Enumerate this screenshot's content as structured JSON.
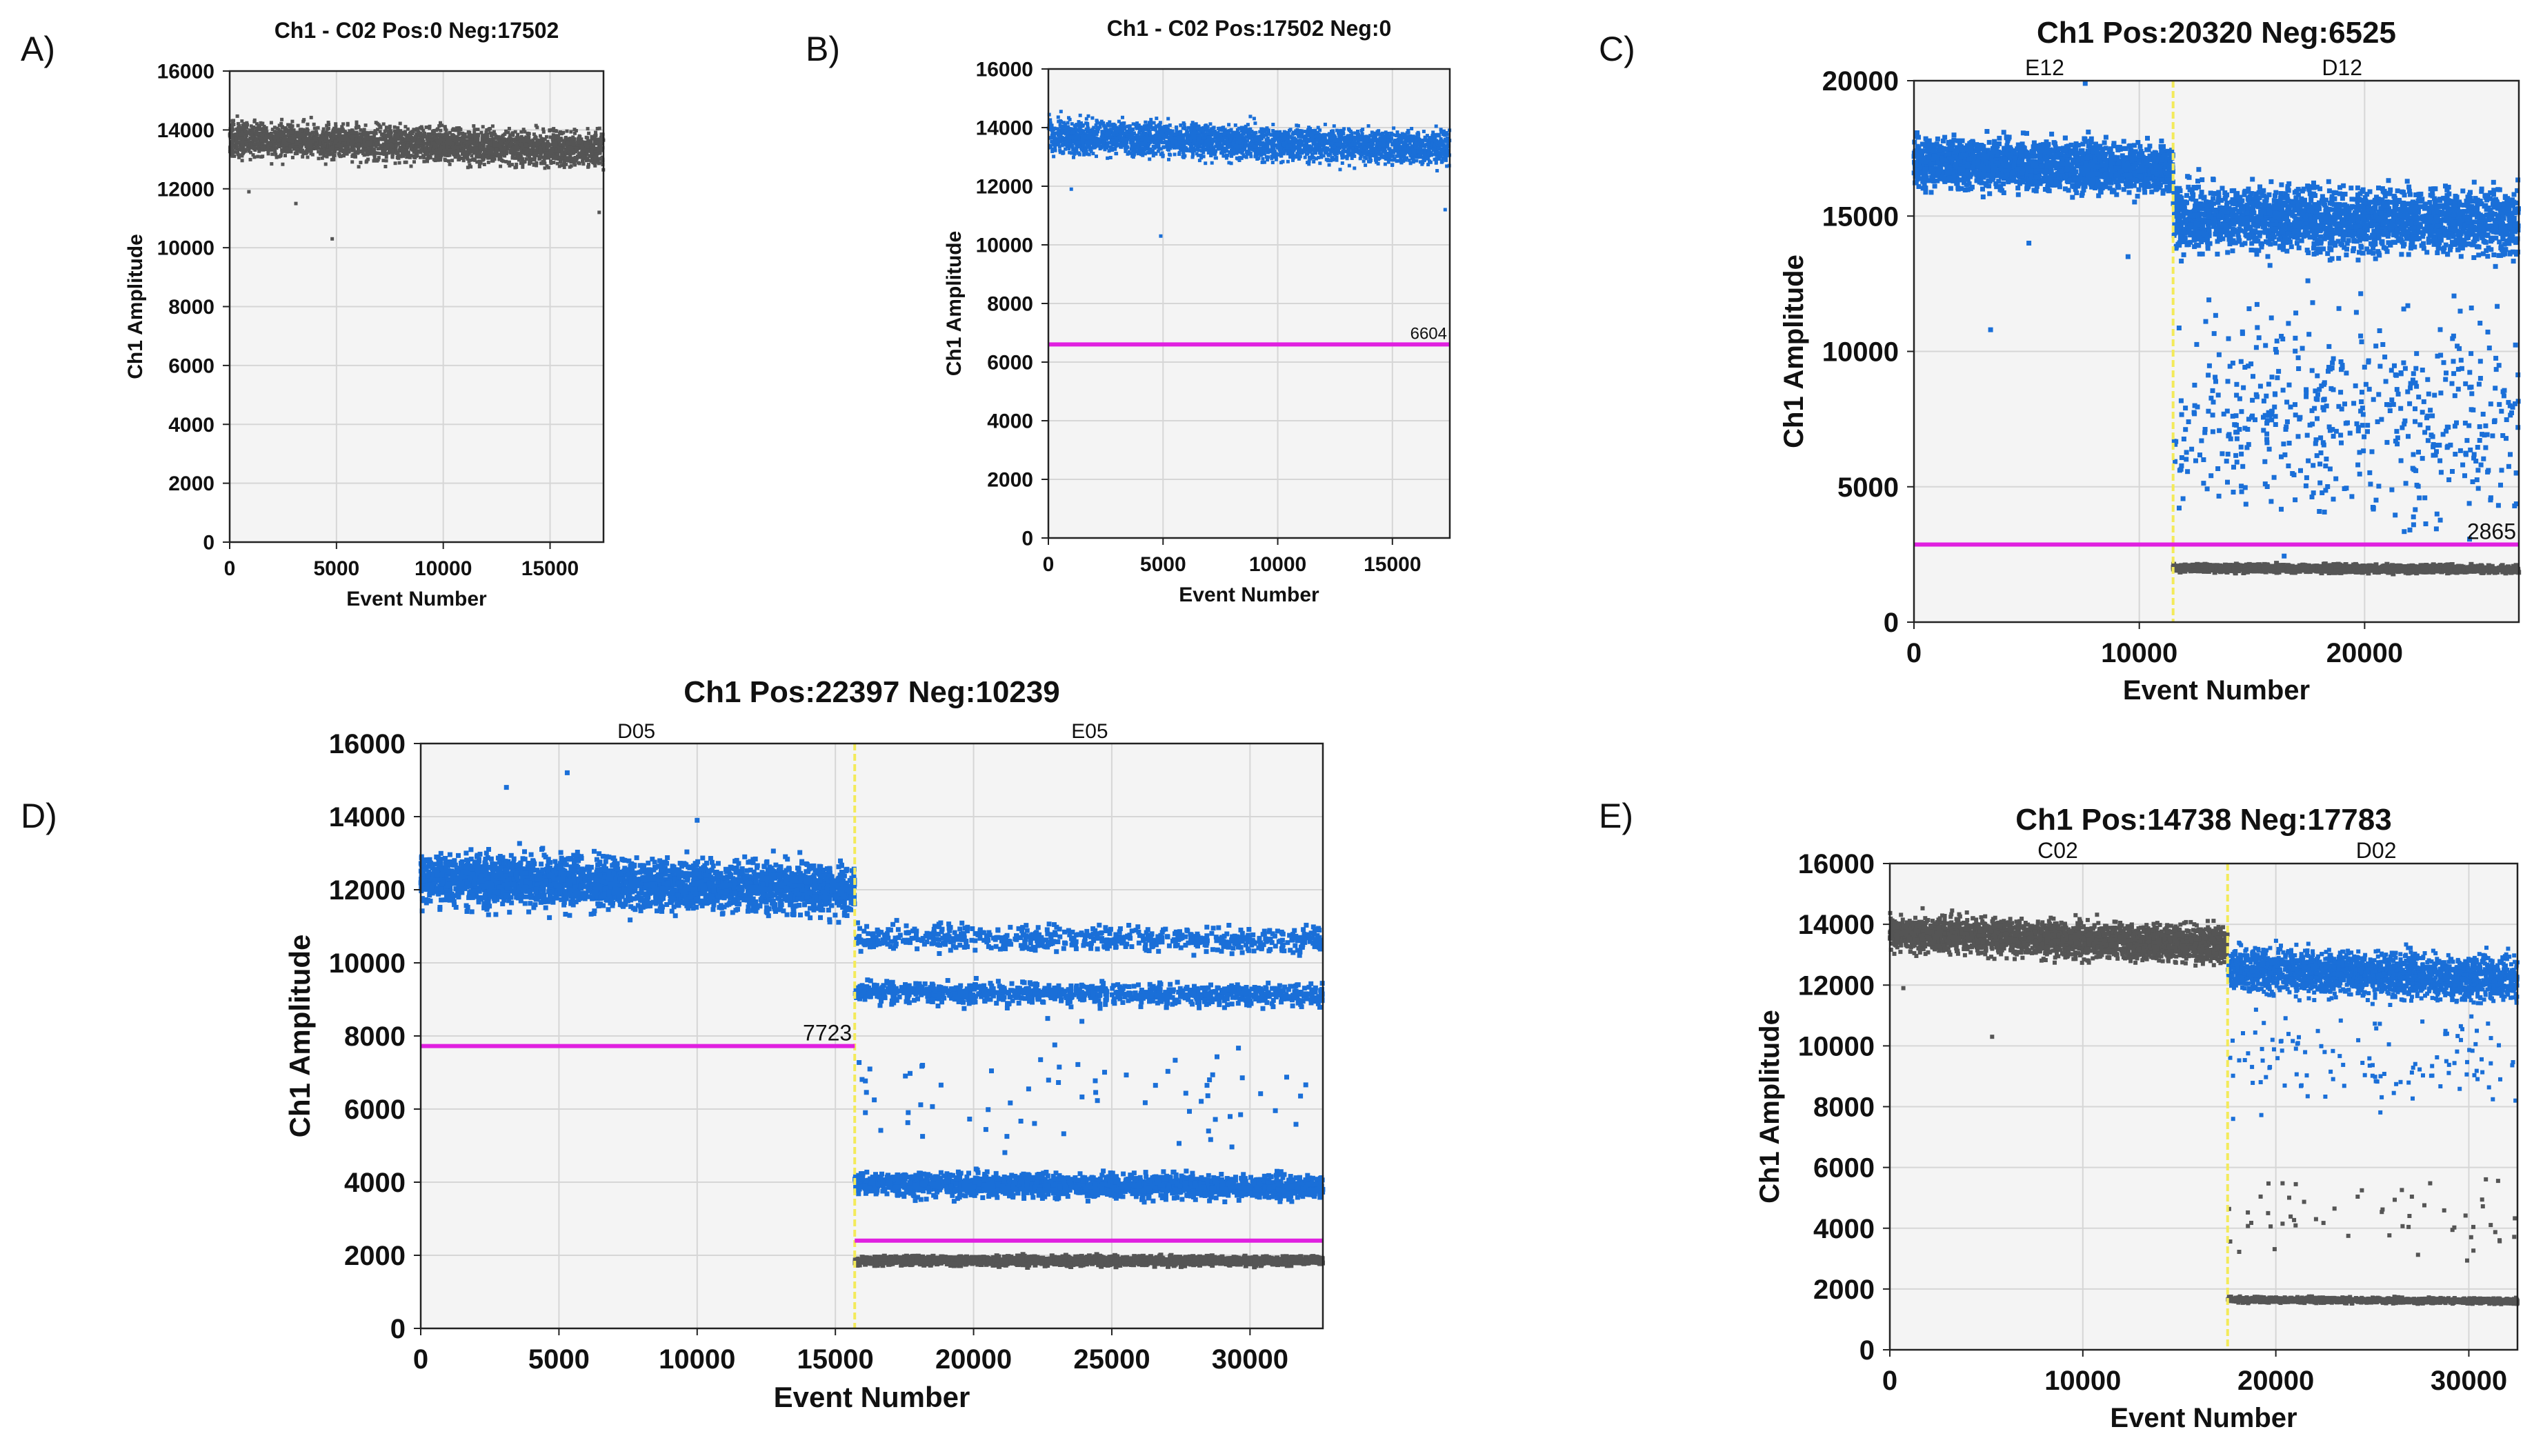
{
  "figure_labels": [
    "A)",
    "B)",
    "C)",
    "D)",
    "E)"
  ],
  "colors": {
    "positive": "#1a6fd8",
    "negative": "#555555",
    "threshold": "#e020e0",
    "separator": "#f3ea5a",
    "plot_bg": "#f4f4f4",
    "grid": "#d6d6d6"
  },
  "chart_data": [
    {
      "id": "A",
      "type": "scatter",
      "title": "Ch1 - C02 Pos:0 Neg:17502",
      "xlabel": "Event Number",
      "ylabel": "Ch1 Amplitude",
      "xlim": [
        0,
        17502
      ],
      "ylim": [
        0,
        16000
      ],
      "xticks": [
        0,
        5000,
        10000,
        15000
      ],
      "yticks": [
        0,
        2000,
        4000,
        6000,
        8000,
        10000,
        12000,
        14000,
        16000
      ],
      "wells": [],
      "thresholds": [],
      "clusters": [
        {
          "name": "negative",
          "color": "negative",
          "x": [
            0,
            17502
          ],
          "y_start": 13700,
          "y_end": 13300,
          "spread": 550,
          "n": 3200
        }
      ],
      "outliers": [
        {
          "x": 4800,
          "y": 10300,
          "color": "negative"
        },
        {
          "x": 900,
          "y": 11900,
          "color": "negative"
        },
        {
          "x": 3100,
          "y": 11500,
          "color": "negative"
        },
        {
          "x": 17300,
          "y": 11200,
          "color": "negative"
        }
      ]
    },
    {
      "id": "B",
      "type": "scatter",
      "title": "Ch1 - C02 Pos:17502 Neg:0",
      "xlabel": "Event Number",
      "ylabel": "Ch1 Amplitude",
      "xlim": [
        0,
        17502
      ],
      "ylim": [
        0,
        16000
      ],
      "xticks": [
        0,
        5000,
        10000,
        15000
      ],
      "yticks": [
        0,
        2000,
        4000,
        6000,
        8000,
        10000,
        12000,
        14000,
        16000
      ],
      "wells": [],
      "thresholds": [
        {
          "value": 6604,
          "label": "6604",
          "x": [
            0,
            17502
          ]
        }
      ],
      "clusters": [
        {
          "name": "positive",
          "color": "positive",
          "x": [
            0,
            17502
          ],
          "y_start": 13700,
          "y_end": 13300,
          "spread": 550,
          "n": 3200
        }
      ],
      "outliers": [
        {
          "x": 4900,
          "y": 10300,
          "color": "positive"
        },
        {
          "x": 1000,
          "y": 11900,
          "color": "positive"
        },
        {
          "x": 17300,
          "y": 11200,
          "color": "positive"
        }
      ]
    },
    {
      "id": "C",
      "type": "scatter",
      "title": "Ch1 Pos:20320 Neg:6525",
      "xlabel": "Event Number",
      "ylabel": "Ch1 Amplitude",
      "xlim": [
        0,
        26845
      ],
      "ylim": [
        0,
        20000
      ],
      "xticks": [
        0,
        10000,
        20000
      ],
      "yticks": [
        0,
        5000,
        10000,
        15000,
        20000
      ],
      "wells": [
        {
          "label": "E12",
          "x": 5800
        },
        {
          "label": "D12",
          "x": 19000
        }
      ],
      "separators": [
        11500
      ],
      "thresholds": [
        {
          "value": 2865,
          "label": "2865",
          "x": [
            0,
            26845
          ]
        }
      ],
      "clusters": [
        {
          "name": "positive-E12",
          "color": "positive",
          "x": [
            0,
            11500
          ],
          "y_start": 17000,
          "y_end": 16700,
          "spread": 850,
          "n": 1900
        },
        {
          "name": "positive-D12",
          "color": "positive",
          "x": [
            11500,
            26845
          ],
          "y_start": 15000,
          "y_end": 14700,
          "spread": 1150,
          "n": 2300
        },
        {
          "name": "rain-D12",
          "color": "positive",
          "x": [
            11500,
            26845
          ],
          "y_start": 7500,
          "y_end": 7500,
          "spread": 3800,
          "n": 520
        },
        {
          "name": "negative-D12",
          "color": "negative",
          "x": [
            11500,
            26845
          ],
          "y_start": 2000,
          "y_end": 1950,
          "spread": 130,
          "n": 1500
        }
      ],
      "outliers": [
        {
          "x": 3400,
          "y": 10800,
          "color": "positive"
        },
        {
          "x": 7600,
          "y": 19900,
          "color": "positive"
        },
        {
          "x": 5100,
          "y": 14000,
          "color": "positive"
        },
        {
          "x": 9500,
          "y": 13500,
          "color": "positive"
        }
      ]
    },
    {
      "id": "D",
      "type": "scatter",
      "title": "Ch1 Pos:22397 Neg:10239",
      "xlabel": "Event Number",
      "ylabel": "Ch1 Amplitude",
      "xlim": [
        0,
        32636
      ],
      "ylim": [
        0,
        16000
      ],
      "xticks": [
        0,
        5000,
        10000,
        15000,
        20000,
        25000,
        30000
      ],
      "yticks": [
        0,
        2000,
        4000,
        6000,
        8000,
        10000,
        12000,
        14000,
        16000
      ],
      "wells": [
        {
          "label": "D05",
          "x": 7800
        },
        {
          "label": "E05",
          "x": 24200
        }
      ],
      "separators": [
        15700
      ],
      "thresholds": [
        {
          "value": 7723,
          "label": "7723",
          "x": [
            0,
            15700
          ]
        },
        {
          "value": 2400,
          "label": "",
          "x": [
            15700,
            32636
          ]
        }
      ],
      "clusters": [
        {
          "name": "positive-D05",
          "color": "positive",
          "x": [
            0,
            15700
          ],
          "y_start": 12300,
          "y_end": 12000,
          "spread": 650,
          "n": 3000
        },
        {
          "name": "positive-E05-high",
          "color": "positive",
          "x": [
            15700,
            32636
          ],
          "y_start": 10700,
          "y_end": 10600,
          "spread": 330,
          "n": 650
        },
        {
          "name": "positive-E05-mid",
          "color": "positive",
          "x": [
            15700,
            32636
          ],
          "y_start": 9200,
          "y_end": 9100,
          "spread": 280,
          "n": 950
        },
        {
          "name": "rain-E05",
          "color": "positive",
          "x": [
            15700,
            32636
          ],
          "y_start": 6500,
          "y_end": 6500,
          "spread": 1600,
          "n": 70
        },
        {
          "name": "positive-E05-low",
          "color": "positive",
          "x": [
            15700,
            32636
          ],
          "y_start": 3950,
          "y_end": 3850,
          "spread": 300,
          "n": 2000
        },
        {
          "name": "negative-E05",
          "color": "negative",
          "x": [
            15700,
            32636
          ],
          "y_start": 1850,
          "y_end": 1850,
          "spread": 120,
          "n": 1700
        }
      ],
      "outliers": [
        {
          "x": 3100,
          "y": 14800,
          "color": "positive"
        },
        {
          "x": 5300,
          "y": 15200,
          "color": "positive"
        },
        {
          "x": 10000,
          "y": 13900,
          "color": "positive"
        },
        {
          "x": 28500,
          "y": 5400,
          "color": "positive"
        }
      ]
    },
    {
      "id": "E",
      "type": "scatter",
      "title": "Ch1 Pos:14738 Neg:17783",
      "xlabel": "Event Number",
      "ylabel": "Ch1 Amplitude",
      "xlim": [
        0,
        32521
      ],
      "ylim": [
        0,
        16000
      ],
      "xticks": [
        0,
        10000,
        20000,
        30000
      ],
      "yticks": [
        0,
        2000,
        4000,
        6000,
        8000,
        10000,
        12000,
        14000,
        16000
      ],
      "wells": [
        {
          "label": "C02",
          "x": 8700
        },
        {
          "label": "D02",
          "x": 25200
        }
      ],
      "separators": [
        17502
      ],
      "thresholds": [],
      "clusters": [
        {
          "name": "negative-C02",
          "color": "negative",
          "x": [
            0,
            17502
          ],
          "y_start": 13700,
          "y_end": 13300,
          "spread": 550,
          "n": 2700
        },
        {
          "name": "positive-D02",
          "color": "positive",
          "x": [
            17502,
            32521
          ],
          "y_start": 12500,
          "y_end": 12200,
          "spread": 700,
          "n": 2200
        },
        {
          "name": "rain-D02",
          "color": "positive",
          "x": [
            17502,
            32521
          ],
          "y_start": 9500,
          "y_end": 9500,
          "spread": 1400,
          "n": 120
        },
        {
          "name": "rain-D02-gray",
          "color": "negative",
          "x": [
            17502,
            32521
          ],
          "y_start": 4500,
          "y_end": 4500,
          "spread": 1500,
          "n": 55
        },
        {
          "name": "negative-D02",
          "color": "negative",
          "x": [
            17502,
            32521
          ],
          "y_start": 1650,
          "y_end": 1600,
          "spread": 90,
          "n": 1300
        }
      ],
      "outliers": [
        {
          "x": 5300,
          "y": 10300,
          "color": "negative"
        },
        {
          "x": 700,
          "y": 11900,
          "color": "negative"
        }
      ]
    }
  ]
}
